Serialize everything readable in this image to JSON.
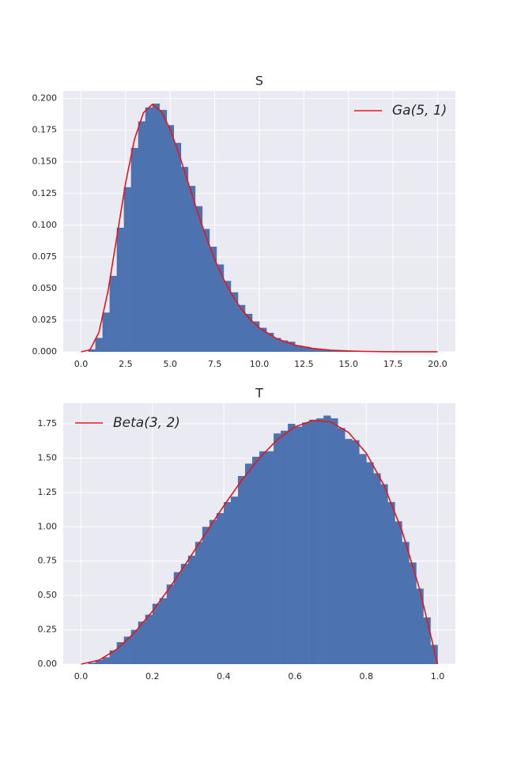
{
  "chart_data": [
    {
      "type": "histogram",
      "title": "S",
      "color": "#4c72b0",
      "bins": [
        0.4,
        0.8,
        1.2,
        1.6,
        2.0,
        2.4,
        2.8,
        3.2,
        3.6,
        4.0,
        4.4,
        4.8,
        5.2,
        5.6,
        6.0,
        6.4,
        6.8,
        7.2,
        7.6,
        8.0,
        8.4,
        8.8,
        9.2,
        9.6,
        10.0,
        10.4,
        10.8,
        11.2,
        11.6,
        12.0,
        12.4,
        12.8,
        13.2,
        13.6,
        14.0,
        14.4,
        14.8,
        15.2,
        15.6,
        16.0,
        16.4
      ],
      "values": [
        0.002,
        0.011,
        0.031,
        0.06,
        0.098,
        0.13,
        0.161,
        0.182,
        0.193,
        0.196,
        0.191,
        0.179,
        0.165,
        0.146,
        0.131,
        0.115,
        0.097,
        0.083,
        0.069,
        0.056,
        0.047,
        0.037,
        0.03,
        0.024,
        0.019,
        0.015,
        0.011,
        0.009,
        0.008,
        0.005,
        0.004,
        0.003,
        0.002,
        0.0015,
        0.0012,
        0.0009,
        0.0007,
        0.0005,
        0.0004,
        0.0003
      ],
      "series": [
        {
          "name": "Ga(5, 1)",
          "color": "#e8141c",
          "x": [
            0,
            0.5,
            1,
            1.5,
            2,
            2.5,
            3,
            3.5,
            4,
            4.5,
            5,
            5.5,
            6,
            6.5,
            7,
            7.5,
            8,
            8.5,
            9,
            9.5,
            10,
            11,
            12,
            13,
            14,
            15,
            16,
            17,
            18,
            19,
            20
          ],
          "values": [
            0,
            0.00158,
            0.0153,
            0.0471,
            0.0902,
            0.1336,
            0.168,
            0.1888,
            0.1954,
            0.1898,
            0.1755,
            0.1558,
            0.1339,
            0.1118,
            0.0912,
            0.0729,
            0.0573,
            0.0443,
            0.0337,
            0.0254,
            0.0189,
            0.0102,
            0.0053,
            0.0027,
            0.0013,
            0.00065,
            0.00031,
            0.00014,
            7e-05,
            3e-05,
            1e-05
          ]
        }
      ],
      "legend": "upper right",
      "grid": true,
      "xlim": [
        -1.0,
        21.0
      ],
      "xticks": [
        {
          "value": 0,
          "label": "0.0"
        },
        2.5,
        {
          "value": 5,
          "label": "5.0"
        },
        7.5,
        {
          "value": 10,
          "label": "10.0"
        },
        12.5,
        {
          "value": 15,
          "label": "15.0"
        },
        17.5,
        {
          "value": 20,
          "label": "20.0"
        }
      ],
      "ylim": [
        0,
        0.206
      ],
      "yticks": [
        {
          "value": 0,
          "label": "0.000"
        },
        0.025,
        {
          "value": 0.05,
          "label": "0.050"
        },
        0.075,
        {
          "value": 0.1,
          "label": "0.100"
        },
        0.125,
        {
          "value": 0.15,
          "label": "0.150"
        },
        0.175,
        {
          "value": 0.2,
          "label": "0.200"
        }
      ]
    },
    {
      "type": "histogram",
      "title": "T",
      "color": "#4c72b0",
      "bins": [
        0,
        0.02,
        0.04,
        0.06,
        0.08,
        0.1,
        0.12,
        0.14,
        0.16,
        0.18,
        0.2,
        0.22,
        0.24,
        0.26,
        0.28,
        0.3,
        0.32,
        0.34,
        0.36,
        0.38,
        0.4,
        0.42,
        0.44,
        0.46,
        0.48,
        0.5,
        0.52,
        0.54,
        0.56,
        0.58,
        0.6,
        0.62,
        0.64,
        0.66,
        0.68,
        0.7,
        0.72,
        0.74,
        0.76,
        0.78,
        0.8,
        0.82,
        0.84,
        0.86,
        0.88,
        0.9,
        0.92,
        0.94,
        0.96,
        0.98,
        1.0
      ],
      "values": [
        0.0,
        0.01,
        0.03,
        0.05,
        0.1,
        0.16,
        0.2,
        0.25,
        0.31,
        0.36,
        0.44,
        0.48,
        0.58,
        0.67,
        0.73,
        0.79,
        0.89,
        1.0,
        1.05,
        1.1,
        1.18,
        1.22,
        1.37,
        1.46,
        1.51,
        1.55,
        1.55,
        1.68,
        1.7,
        1.75,
        1.73,
        1.76,
        1.78,
        1.79,
        1.81,
        1.79,
        1.72,
        1.64,
        1.63,
        1.53,
        1.47,
        1.39,
        1.31,
        1.18,
        1.04,
        0.89,
        0.74,
        0.55,
        0.34,
        0.14
      ],
      "series": [
        {
          "name": "Beta(3, 2)",
          "color": "#e8141c",
          "x": [
            0,
            0.05,
            0.1,
            0.15,
            0.2,
            0.25,
            0.3,
            0.35,
            0.4,
            0.45,
            0.5,
            0.55,
            0.6,
            0.65,
            0.7,
            0.75,
            0.8,
            0.85,
            0.9,
            0.95,
            1
          ],
          "values": [
            0,
            0.0285,
            0.108,
            0.2295,
            0.384,
            0.5625,
            0.756,
            0.9555,
            1.152,
            1.3365,
            1.5,
            1.6335,
            1.728,
            1.7745,
            1.764,
            1.6875,
            1.536,
            1.3005,
            0.972,
            0.5415,
            0
          ]
        }
      ],
      "legend": "upper left",
      "grid": true,
      "xlim": [
        -0.05,
        1.05
      ],
      "xticks": [
        {
          "value": 0,
          "label": "0.0"
        },
        0.2,
        0.4,
        0.6,
        0.8,
        {
          "value": 1,
          "label": "1.0"
        }
      ],
      "ylim": [
        0,
        1.9
      ],
      "yticks": [
        {
          "value": 0,
          "label": "0.00"
        },
        0.25,
        {
          "value": 0.5,
          "label": "0.50"
        },
        0.75,
        {
          "value": 1,
          "label": "1.00"
        },
        1.25,
        {
          "value": 1.5,
          "label": "1.50"
        },
        1.75
      ]
    }
  ]
}
